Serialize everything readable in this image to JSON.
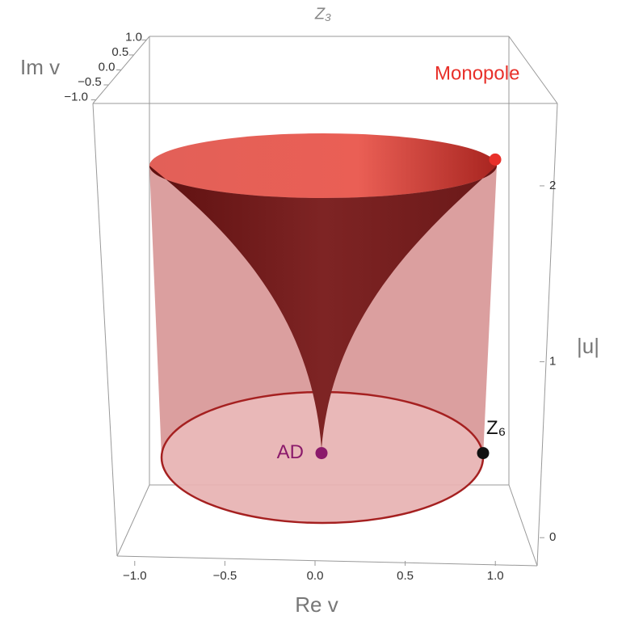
{
  "chart_data": {
    "type": "surface3d",
    "title": "Z₃",
    "xlabel": "Re v",
    "ylabel": "Im v",
    "zlabel": "|u|",
    "xlim": [
      -1.12,
      1.12
    ],
    "xticks": [
      {
        "value": -1,
        "label": "−1.0"
      },
      {
        "value": -0.5,
        "label": "−0.5"
      },
      {
        "value": 0,
        "label": "0.0"
      },
      0.5,
      {
        "value": 1,
        "label": "1.0"
      }
    ],
    "ylim": [
      -1.12,
      1.12
    ],
    "yticks": [
      {
        "value": 1,
        "label": "1.0"
      },
      0.5,
      {
        "value": 0,
        "label": "0.0"
      },
      {
        "value": -0.5,
        "label": "−0.5"
      },
      {
        "value": -1,
        "label": "−1.0"
      }
    ],
    "zlim": [
      -0.1,
      2.45
    ],
    "zticks": [
      0,
      1,
      2
    ],
    "points": [
      {
        "name": "AD",
        "color": "#8b1a6b",
        "x": 0,
        "y": 0,
        "z": 0.48
      },
      {
        "name": "Z₆",
        "color": "#111111",
        "x": 1,
        "y": 0,
        "z": 0.48
      },
      {
        "name": "Monopole",
        "color": "#e8302a",
        "x": 1,
        "y": 0,
        "z": 2.15
      }
    ]
  }
}
